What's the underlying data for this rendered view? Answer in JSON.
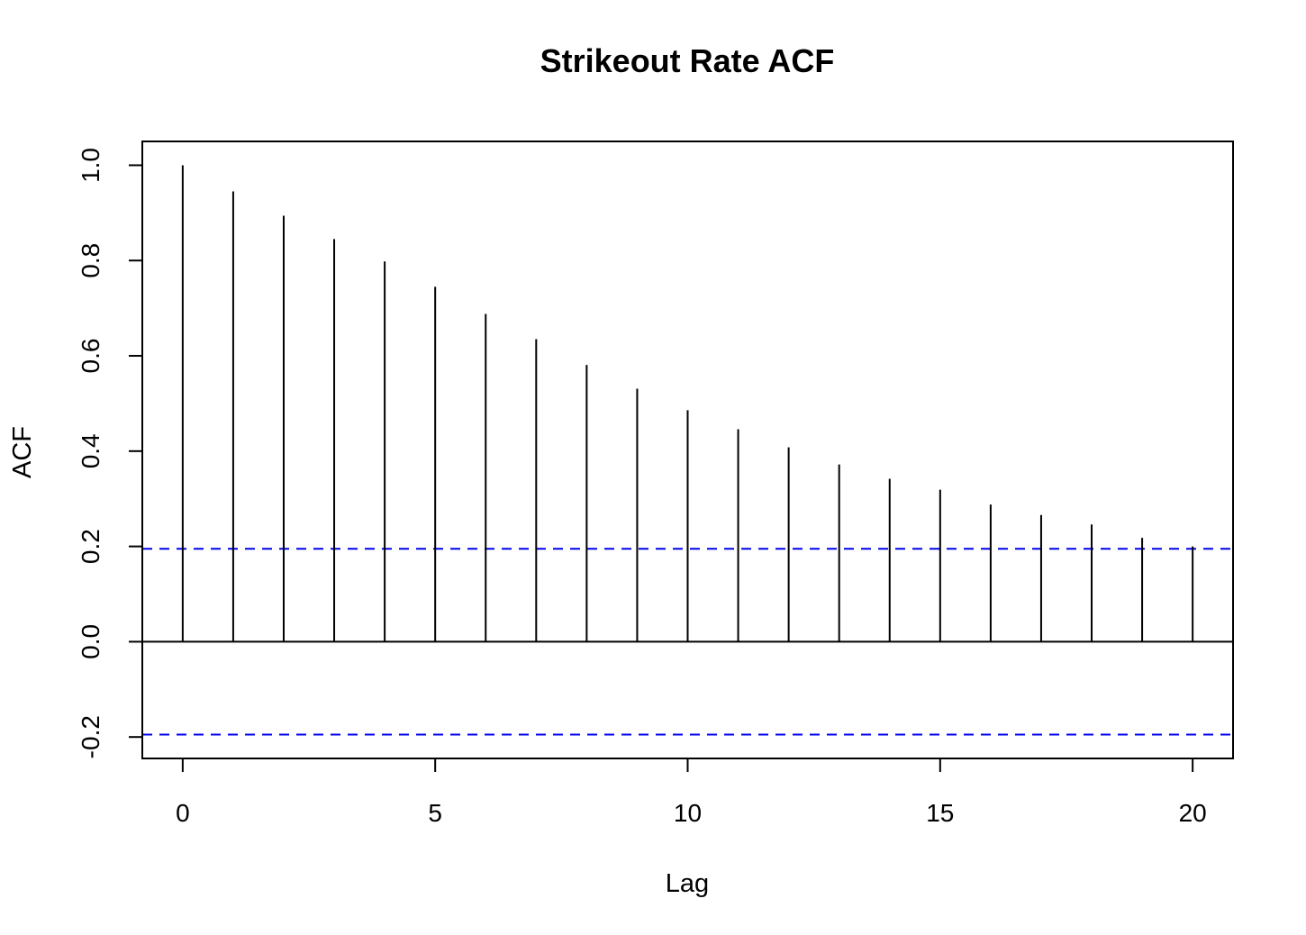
{
  "chart_data": {
    "type": "bar",
    "title": "Strikeout Rate ACF",
    "xlabel": "Lag",
    "ylabel": "ACF",
    "x": [
      0,
      1,
      2,
      3,
      4,
      5,
      6,
      7,
      8,
      9,
      10,
      11,
      12,
      13,
      14,
      15,
      16,
      17,
      18,
      19,
      20
    ],
    "values": [
      1.0,
      0.945,
      0.894,
      0.845,
      0.798,
      0.745,
      0.688,
      0.635,
      0.581,
      0.531,
      0.486,
      0.446,
      0.408,
      0.372,
      0.342,
      0.319,
      0.288,
      0.266,
      0.246,
      0.218,
      0.2
    ],
    "confidence_bounds": [
      0.195,
      -0.195
    ],
    "xlim": [
      -0.8,
      20.8
    ],
    "ylim": [
      -0.245,
      1.05
    ],
    "xticks": [
      "0",
      "5",
      "10",
      "15",
      "20"
    ],
    "yticks": [
      "-0.2",
      "0.0",
      "0.2",
      "0.4",
      "0.6",
      "0.8",
      "1.0"
    ],
    "colors": {
      "bars": "#000000",
      "bounds": "#0000ee",
      "zero_line": "#000000"
    },
    "grid": false,
    "legend": "none"
  }
}
